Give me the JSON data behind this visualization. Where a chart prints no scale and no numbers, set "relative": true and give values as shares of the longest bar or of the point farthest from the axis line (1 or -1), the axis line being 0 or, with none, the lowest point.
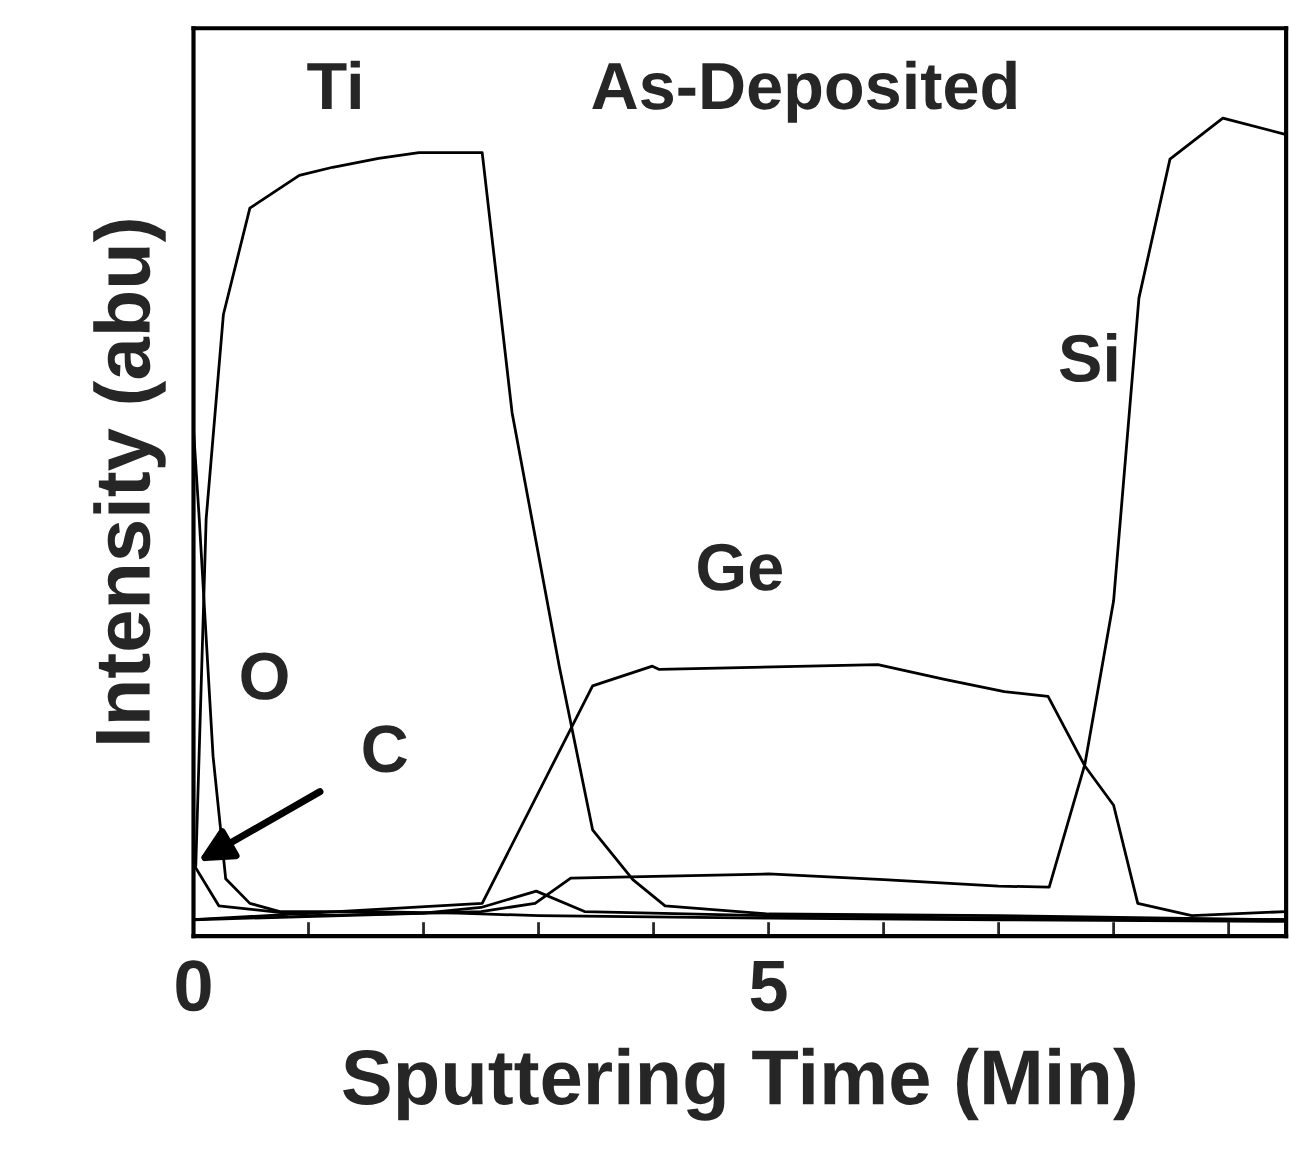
{
  "chart_data": {
    "type": "line",
    "relative": true,
    "xlabel": "Sputtering Time (Min)",
    "ylabel": "Intensity (abu)",
    "annotations": [
      "As-Deposited"
    ],
    "xlim": [
      0,
      9.5
    ],
    "xticks": [
      0,
      {
        "value": 1,
        "label": null
      },
      {
        "value": 2,
        "label": null
      },
      {
        "value": 3,
        "label": null
      },
      {
        "value": 4,
        "label": null
      },
      5,
      {
        "value": 6,
        "label": null
      },
      {
        "value": 7,
        "label": null
      },
      {
        "value": 8,
        "label": null
      },
      {
        "value": 9,
        "label": null
      }
    ],
    "grid": false,
    "marker": "none",
    "line_style": "solid",
    "series": [
      {
        "name": "Ti",
        "color": "#000000",
        "x": [
          0.02,
          0.11,
          0.26,
          0.49,
          0.92,
          1.21,
          1.61,
          1.96,
          2.51,
          2.77,
          3.18,
          3.47,
          3.82,
          4.1,
          5,
          7,
          9.5
        ],
        "values": [
          0.086,
          0.51,
          0.76,
          0.89,
          0.93,
          0.94,
          0.951,
          0.958,
          0.958,
          0.64,
          0.33,
          0.13,
          0.069,
          0.037,
          0.027,
          0.025,
          0.02
        ]
      },
      {
        "name": "Si",
        "color": "#000000",
        "x": [
          0,
          2.5,
          2.97,
          3.28,
          5,
          6,
          7,
          7.44,
          7.75,
          8,
          8.22,
          8.49,
          8.95,
          9.5
        ],
        "values": [
          0.02,
          0.03,
          0.04,
          0.071,
          0.076,
          0.069,
          0.061,
          0.06,
          0.21,
          0.41,
          0.78,
          0.95,
          1.0,
          0.98
        ]
      },
      {
        "name": "Ge",
        "color": "#000000",
        "x": [
          0,
          2.51,
          3.47,
          3.99,
          4.05,
          5.95,
          6.53,
          7.05,
          7.43,
          7.75,
          8,
          8.21,
          8.68,
          9.5
        ],
        "values": [
          0.02,
          0.04,
          0.306,
          0.33,
          0.326,
          0.332,
          0.314,
          0.299,
          0.293,
          0.208,
          0.16,
          0.04,
          0.025,
          0.03
        ]
      },
      {
        "name": "O",
        "color": "#000000",
        "x": [
          0,
          0.05,
          0.17,
          0.28,
          0.49,
          0.75,
          1.5,
          2.3,
          3,
          5,
          7,
          9.5
        ],
        "values": [
          0.62,
          0.51,
          0.22,
          0.07,
          0.04,
          0.03,
          0.03,
          0.028,
          0.025,
          0.022,
          0.02,
          0.018
        ]
      },
      {
        "name": "C",
        "color": "#000000",
        "x": [
          0,
          0.22,
          1,
          2,
          2.5,
          2.98,
          3.4,
          5,
          7,
          9.5
        ],
        "values": [
          0.088,
          0.037,
          0.025,
          0.028,
          0.035,
          0.055,
          0.03,
          0.025,
          0.022,
          0.02
        ]
      }
    ]
  }
}
